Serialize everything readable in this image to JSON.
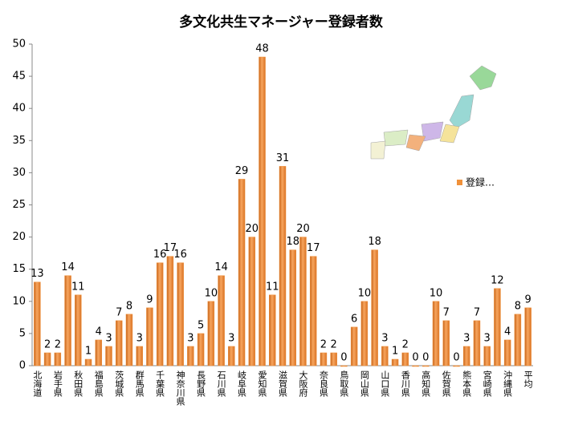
{
  "chart_data": {
    "type": "bar",
    "title": "多文化共生マネージャー登録者数",
    "categories": [
      "北海道",
      null,
      "岩手県",
      null,
      "秋田県",
      null,
      "福島県",
      null,
      "茨城県",
      null,
      "群馬県",
      null,
      "千葉県",
      null,
      "神奈川県",
      null,
      "長野県",
      null,
      "石川県",
      null,
      "岐阜県",
      null,
      "愛知県",
      null,
      "滋賀県",
      null,
      "大阪府",
      null,
      "奈良県",
      null,
      "鳥取県",
      null,
      "岡山県",
      null,
      "山口県",
      null,
      "香川県",
      null,
      "高知県",
      null,
      "佐賀県",
      null,
      "熊本県",
      null,
      "宮崎県",
      null,
      "沖縄県",
      null,
      "平均"
    ],
    "series": [
      {
        "name": "登録…",
        "color": "#f0913a",
        "values": [
          13,
          2,
          2,
          14,
          11,
          1,
          4,
          3,
          7,
          8,
          3,
          9,
          16,
          17,
          16,
          3,
          5,
          10,
          14,
          3,
          29,
          20,
          48,
          11,
          31,
          18,
          20,
          17,
          2,
          2,
          0,
          6,
          10,
          18,
          3,
          1,
          2,
          0,
          0,
          10,
          7,
          0,
          3,
          7,
          3,
          12,
          4,
          8,
          9
        ]
      }
    ],
    "ylim": [
      0,
      50
    ],
    "yticks": [
      0,
      5,
      10,
      15,
      20,
      25,
      30,
      35,
      40,
      45,
      50
    ],
    "grid": false,
    "legend": "right"
  }
}
